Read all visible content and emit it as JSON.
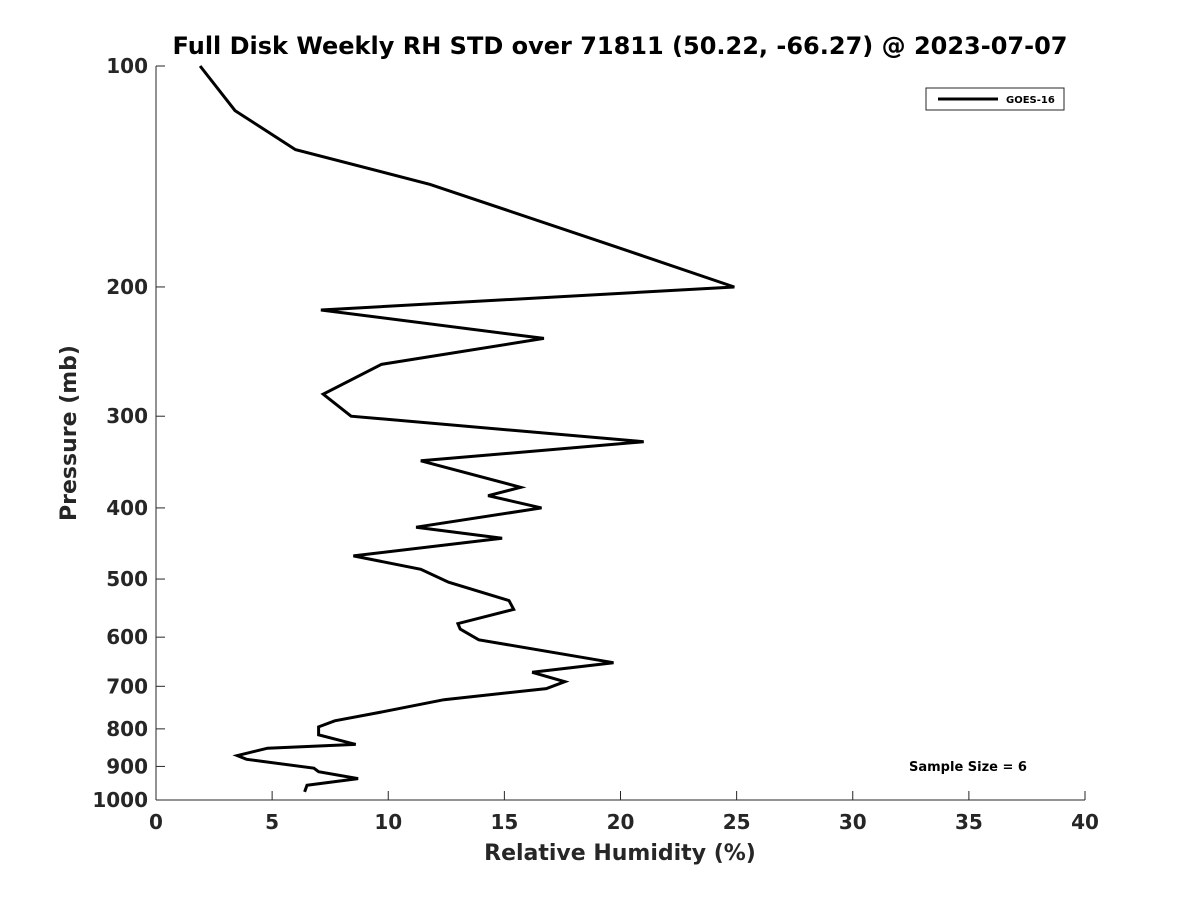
{
  "chart_data": {
    "type": "line",
    "title": "Full Disk Weekly RH STD over 71811 (50.22, -66.27) @ 2023-07-07",
    "xlabel": "Relative Humidity (%)",
    "ylabel": "Pressure (mb)",
    "xlim": [
      0,
      40
    ],
    "ylim": [
      100,
      1000
    ],
    "y_scale": "log",
    "y_reversed": true,
    "x_ticks": [
      0,
      5,
      10,
      15,
      20,
      25,
      30,
      35,
      40
    ],
    "x_tick_labels": [
      "0",
      "5",
      "10",
      "15",
      "20",
      "25",
      "30",
      "35",
      "40"
    ],
    "y_ticks": [
      100,
      200,
      300,
      400,
      500,
      600,
      700,
      800,
      900,
      1000
    ],
    "y_tick_labels": [
      "100",
      "200",
      "300",
      "400",
      "500",
      "600",
      "700",
      "800",
      "900",
      "1000"
    ],
    "grid": false,
    "legend_position": "top-right",
    "line_color": "#000000",
    "series": [
      {
        "name": "GOES-16",
        "x": [
          1.9,
          3.4,
          6.0,
          11.8,
          19.5,
          24.9,
          7.1,
          16.7,
          9.7,
          7.2,
          8.4,
          21.0,
          11.4,
          15.7,
          14.3,
          16.6,
          11.2,
          14.9,
          8.5,
          11.4,
          12.6,
          15.2,
          15.4,
          13.0,
          13.1,
          13.9,
          19.7,
          16.2,
          17.6,
          16.8,
          12.4,
          9.6,
          7.7,
          7.0,
          7.0,
          8.6,
          4.8,
          3.5,
          3.9,
          6.8,
          7.0,
          8.7,
          6.5,
          6.4
        ],
        "y": [
          100,
          115,
          130,
          145,
          175,
          200,
          215,
          235,
          255,
          280,
          300,
          325,
          345,
          375,
          385,
          400,
          425,
          440,
          465,
          485,
          505,
          535,
          550,
          575,
          585,
          605,
          650,
          670,
          690,
          705,
          730,
          760,
          780,
          795,
          815,
          840,
          850,
          870,
          880,
          905,
          915,
          935,
          955,
          975
        ]
      }
    ],
    "annotation": "Sample Size = 6"
  }
}
